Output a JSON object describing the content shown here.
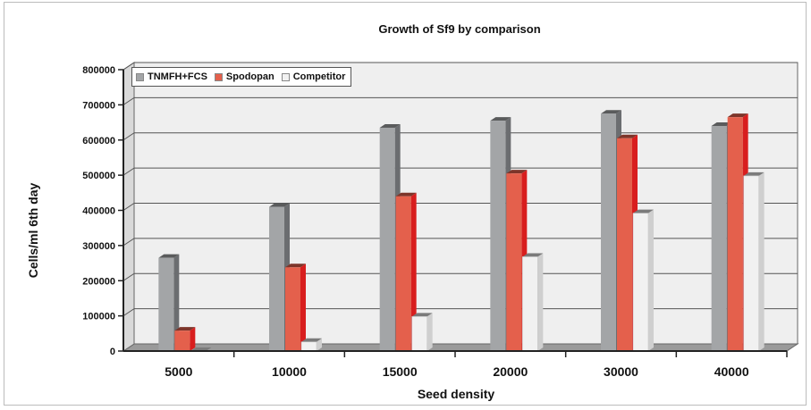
{
  "chart_data": {
    "type": "bar",
    "title": "Growth of Sf9 by comparison",
    "xlabel": "Seed density",
    "ylabel": "Cells/ml 6th day",
    "categories": [
      "5000",
      "10000",
      "15000",
      "20000",
      "30000",
      "40000"
    ],
    "ylim": [
      0,
      800000
    ],
    "yticks": [
      "0",
      "100000",
      "200000",
      "300000",
      "400000",
      "500000",
      "600000",
      "700000",
      "800000"
    ],
    "grid": true,
    "legend_position": "top-left",
    "series": [
      {
        "name": "TNMFH+FCS",
        "color": "#a3a5a7",
        "values": [
          265000,
          410000,
          635000,
          655000,
          675000,
          640000
        ]
      },
      {
        "name": "Spodopan",
        "color": "#e4604c",
        "values": [
          58000,
          238000,
          440000,
          505000,
          605000,
          665000
        ]
      },
      {
        "name": "Competitor",
        "color": "#f1f1f1",
        "values": [
          0,
          26000,
          98000,
          268000,
          392000,
          498000
        ]
      }
    ]
  }
}
